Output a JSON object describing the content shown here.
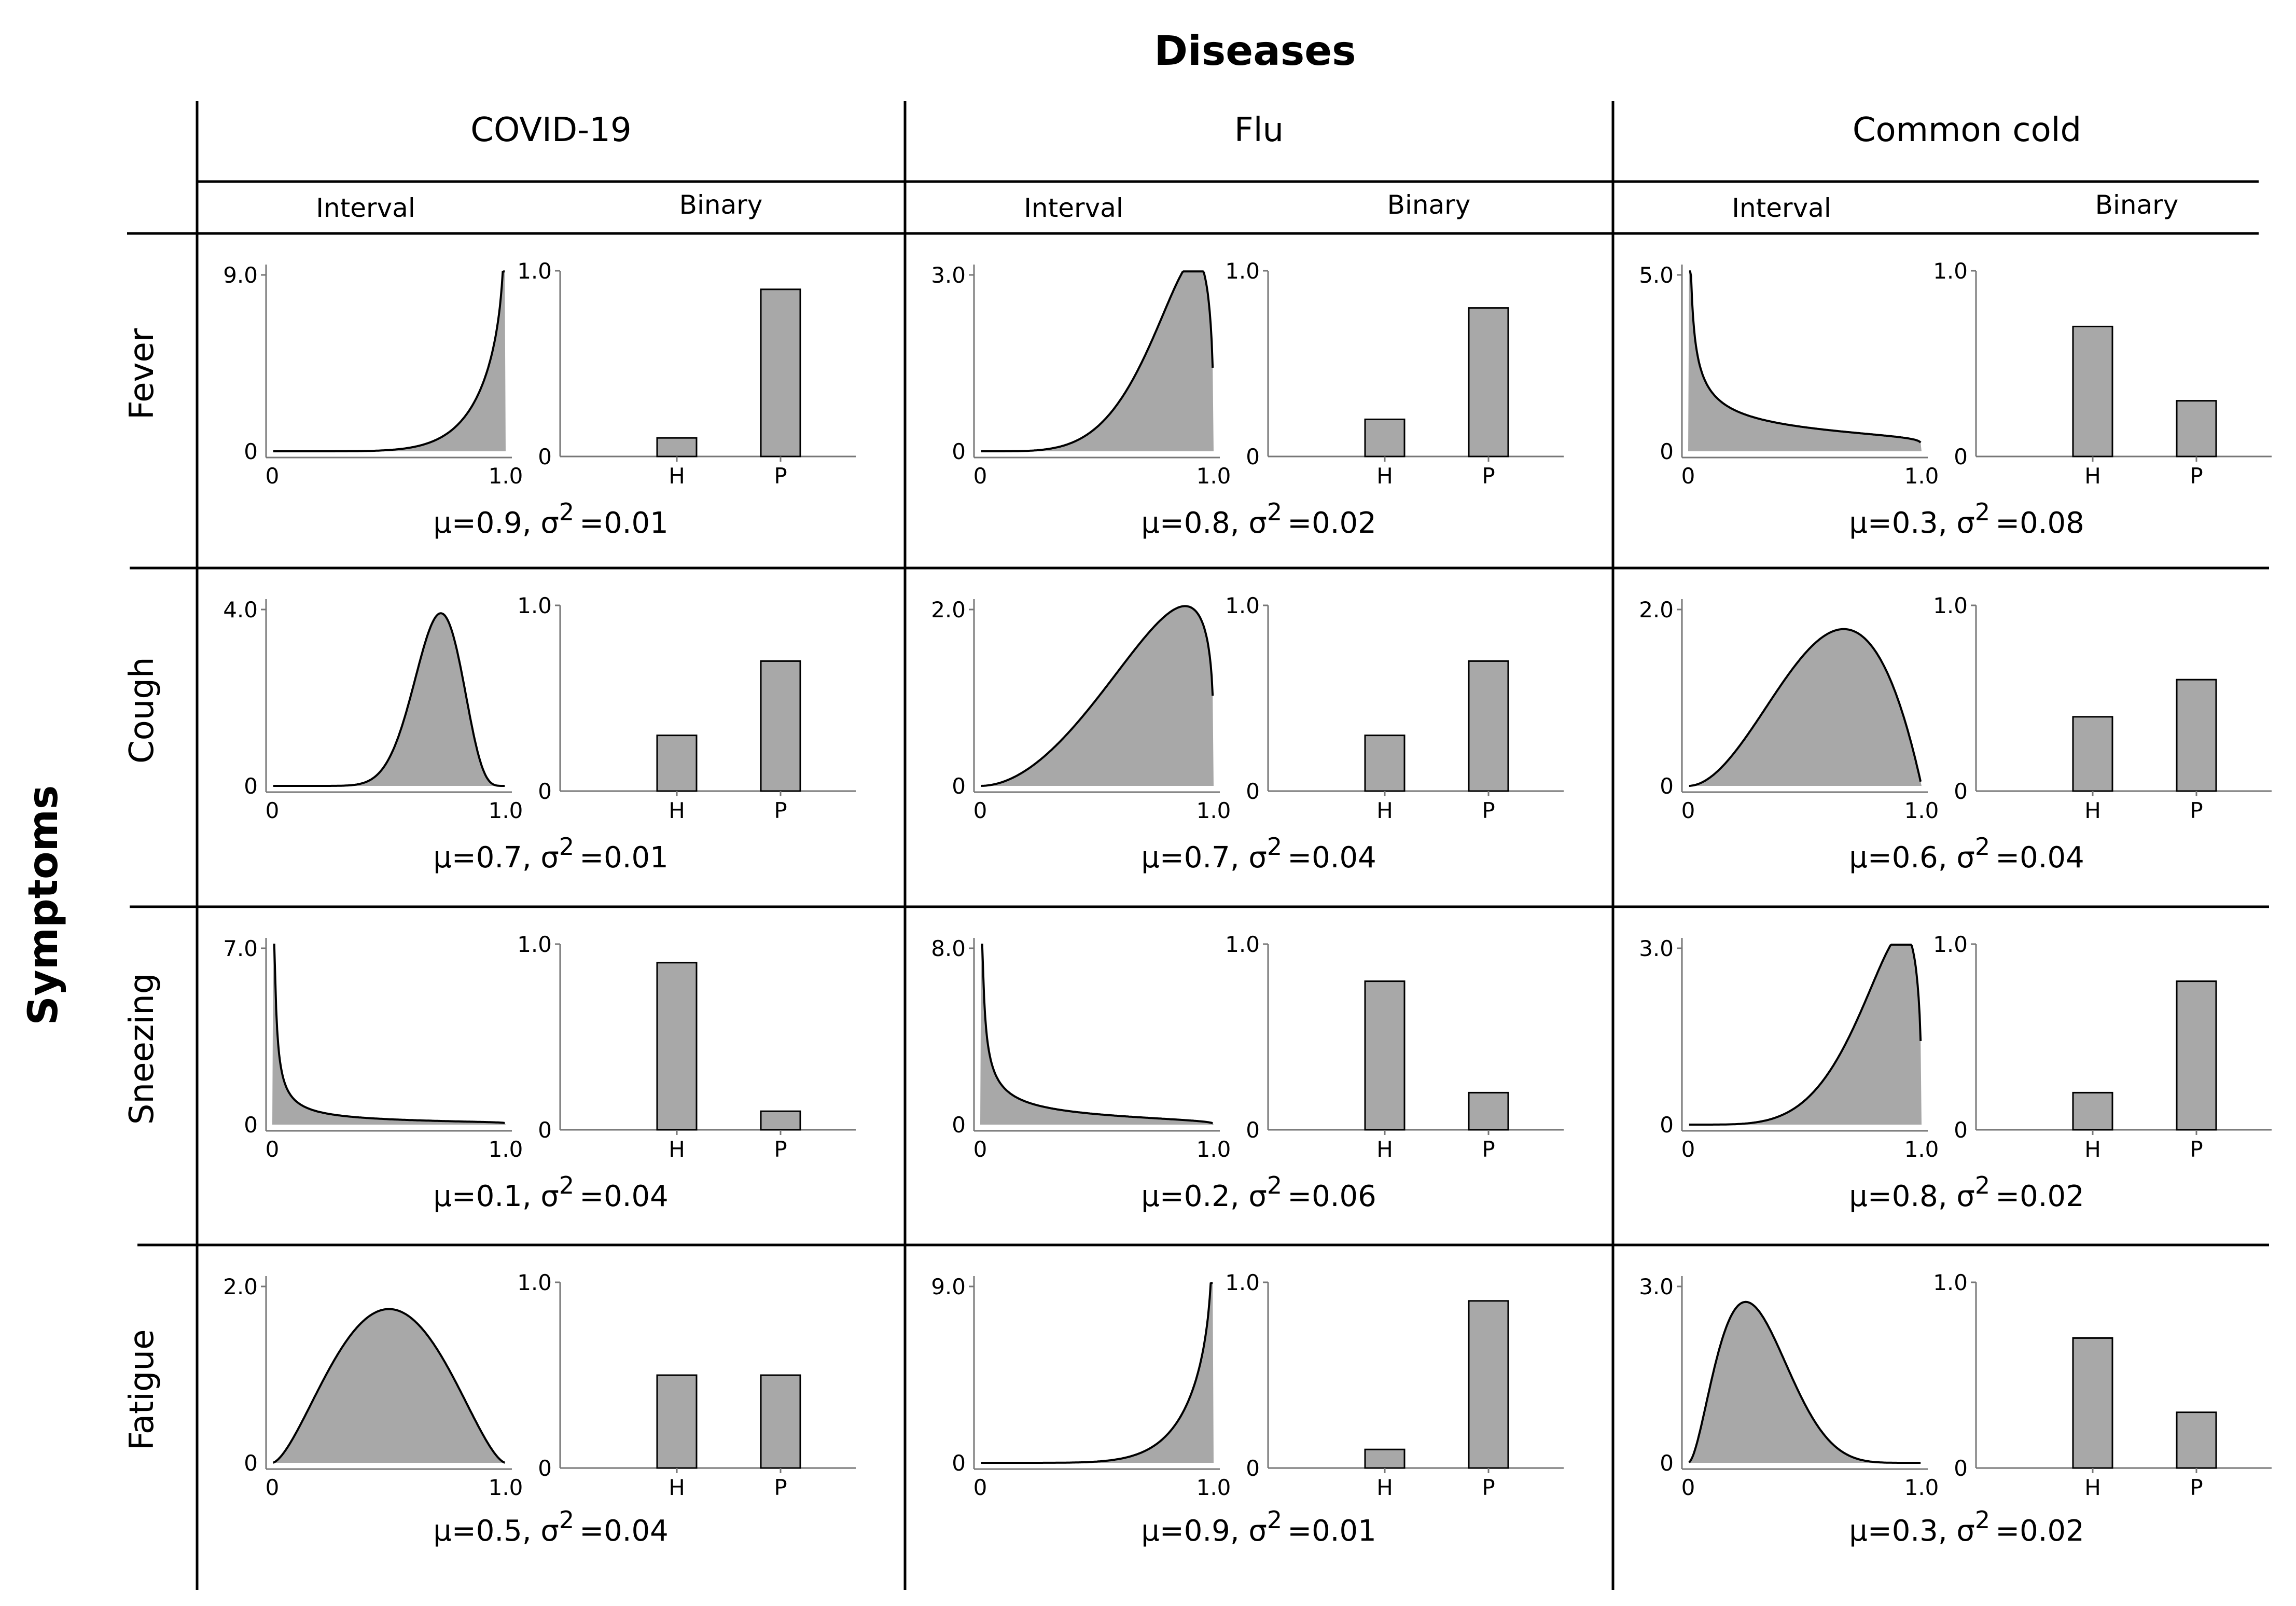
{
  "chart_data": {
    "type": "table",
    "title": "Diseases",
    "row_axis_label": "Symptoms",
    "diseases": [
      "COVID-19",
      "Flu",
      "Common cold"
    ],
    "sub_columns": [
      "Interval",
      "Binary"
    ],
    "symptoms": [
      "Fever",
      "Cough",
      "Sneezing",
      "Fatigue"
    ],
    "bar_categories": [
      "H",
      "P"
    ],
    "interval_x_ticks": [
      "0",
      "1.0"
    ],
    "binary_y_ticks": [
      "0",
      "1.0"
    ],
    "cells": [
      [
        {
          "mu": 0.9,
          "var": 0.01,
          "ymax_label": "9.0",
          "ymax": 9.0,
          "binary": [
            0.1,
            0.9
          ],
          "stat_text": "μ=0.9, σ",
          "stat_var_text": "=0.01"
        },
        {
          "mu": 0.8,
          "var": 0.02,
          "ymax_label": "3.0",
          "ymax": 3.0,
          "binary": [
            0.2,
            0.8
          ],
          "stat_text": "μ=0.8, σ",
          "stat_var_text": "=0.02"
        },
        {
          "mu": 0.3,
          "var": 0.08,
          "ymax_label": "5.0",
          "ymax": 5.0,
          "binary": [
            0.7,
            0.3
          ],
          "stat_text": "μ=0.3, σ",
          "stat_var_text": "=0.08"
        }
      ],
      [
        {
          "mu": 0.7,
          "var": 0.01,
          "ymax_label": "4.0",
          "ymax": 4.0,
          "binary": [
            0.3,
            0.7
          ],
          "stat_text": "μ=0.7, σ",
          "stat_var_text": "=0.01"
        },
        {
          "mu": 0.7,
          "var": 0.04,
          "ymax_label": "2.0",
          "ymax": 2.0,
          "binary": [
            0.3,
            0.7
          ],
          "stat_text": "μ=0.7, σ",
          "stat_var_text": "=0.04"
        },
        {
          "mu": 0.6,
          "var": 0.04,
          "ymax_label": "2.0",
          "ymax": 2.0,
          "binary": [
            0.4,
            0.6
          ],
          "stat_text": "μ=0.6, σ",
          "stat_var_text": "=0.04"
        }
      ],
      [
        {
          "mu": 0.1,
          "var": 0.04,
          "ymax_label": "7.0",
          "ymax": 7.0,
          "binary": [
            0.9,
            0.1
          ],
          "stat_text": "μ=0.1, σ",
          "stat_var_text": "=0.04"
        },
        {
          "mu": 0.2,
          "var": 0.06,
          "ymax_label": "8.0",
          "ymax": 8.0,
          "binary": [
            0.8,
            0.2
          ],
          "stat_text": "μ=0.2, σ",
          "stat_var_text": "=0.06"
        },
        {
          "mu": 0.8,
          "var": 0.02,
          "ymax_label": "3.0",
          "ymax": 3.0,
          "binary": [
            0.2,
            0.8
          ],
          "stat_text": "μ=0.8, σ",
          "stat_var_text": "=0.02"
        }
      ],
      [
        {
          "mu": 0.5,
          "var": 0.04,
          "ymax_label": "2.0",
          "ymax": 2.0,
          "binary": [
            0.5,
            0.5
          ],
          "stat_text": "μ=0.5, σ",
          "stat_var_text": "=0.04"
        },
        {
          "mu": 0.9,
          "var": 0.01,
          "ymax_label": "9.0",
          "ymax": 9.0,
          "binary": [
            0.1,
            0.9
          ],
          "stat_text": "μ=0.9, σ",
          "stat_var_text": "=0.01"
        },
        {
          "mu": 0.3,
          "var": 0.02,
          "ymax_label": "3.0",
          "ymax": 3.0,
          "binary": [
            0.7,
            0.3
          ],
          "stat_text": "μ=0.3, σ",
          "stat_var_text": "=0.02"
        }
      ]
    ],
    "superscript": "2"
  }
}
